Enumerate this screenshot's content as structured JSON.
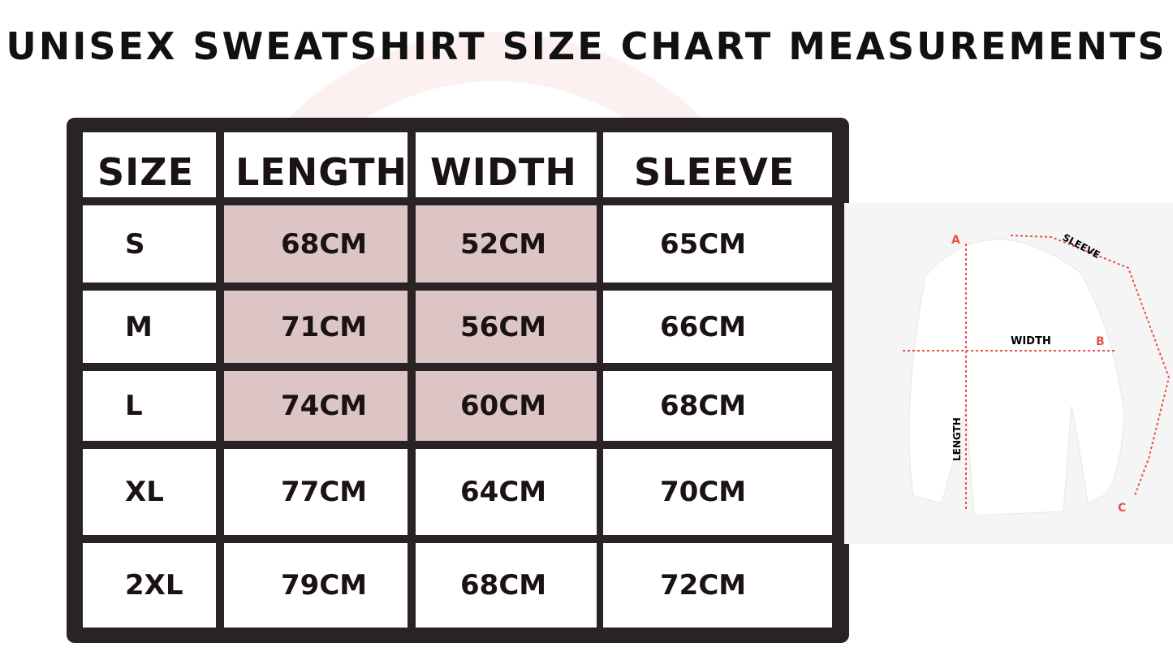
{
  "title": "UNISEX SWEATSHIRT SIZE CHART MEASUREMENTS",
  "table": {
    "headers": [
      "SIZE",
      "LENGTH",
      "WIDTH",
      "SLEEVE"
    ],
    "rows": [
      [
        "S",
        "68CM",
        "52CM",
        "65CM"
      ],
      [
        "M",
        "71CM",
        "56CM",
        "66CM"
      ],
      [
        "L",
        "74CM",
        "60CM",
        "68CM"
      ],
      [
        "XL",
        "77CM",
        "64CM",
        "70CM"
      ],
      [
        "2XL",
        "79CM",
        "68CM",
        "72CM"
      ]
    ]
  },
  "diagram": {
    "point_a": "A",
    "point_b": "B",
    "point_c": "C",
    "sleeve": "SLEEVE",
    "width": "WIDTH",
    "length": "LENGTH"
  },
  "colors": {
    "border": "#2a2325",
    "accent": "#e8504a",
    "watermark": "#fce2e0"
  }
}
